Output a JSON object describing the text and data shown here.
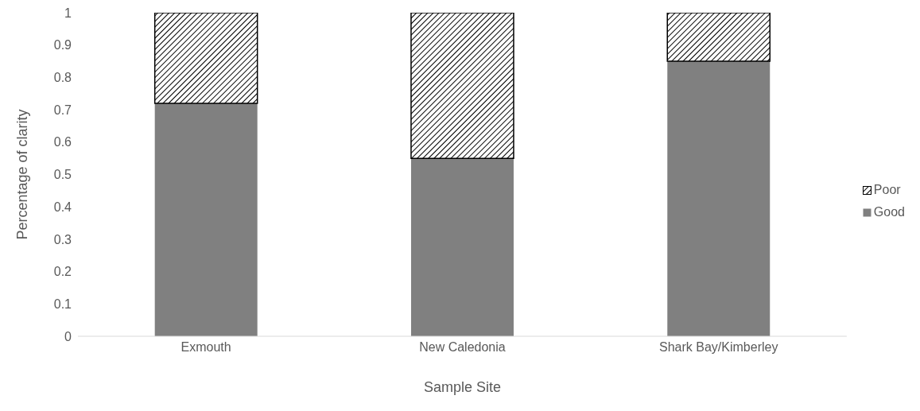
{
  "chart_data": {
    "type": "bar",
    "stacked": true,
    "xlabel": "Sample Site",
    "ylabel": "Percentage of clarity",
    "categories": [
      "Exmouth",
      "New Caledonia",
      "Shark Bay/Kimberley"
    ],
    "series": [
      {
        "name": "Good",
        "color": "#808080",
        "values": [
          0.72,
          0.55,
          0.85
        ]
      },
      {
        "name": "Poor",
        "color": "#000000",
        "values": [
          0.28,
          0.45,
          0.15
        ]
      }
    ],
    "ylim": [
      0,
      1
    ],
    "yticks": [
      0,
      0.1,
      0.2,
      0.3,
      0.4,
      0.5,
      0.6,
      0.7,
      0.8,
      0.9,
      1
    ],
    "grid": false,
    "legend": "right"
  }
}
